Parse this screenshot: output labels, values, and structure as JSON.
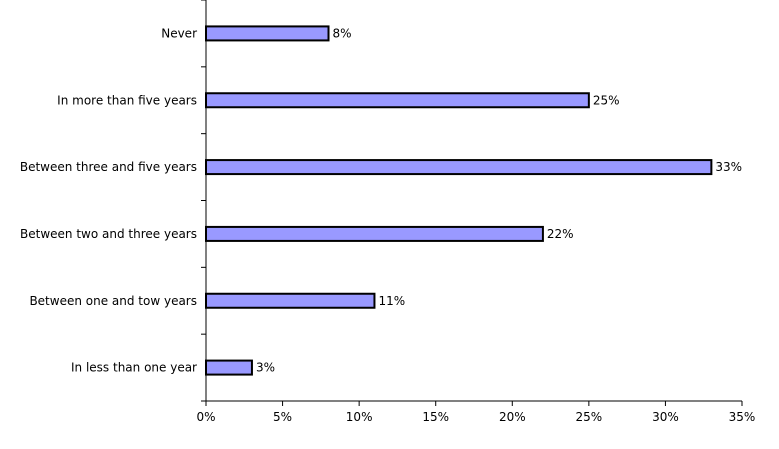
{
  "chart_data": {
    "type": "bar",
    "orientation": "horizontal",
    "categories": [
      "Never",
      "In more than five years",
      "Between three and five years",
      "Between two and three years",
      "Between one and tow years",
      "In less than one year"
    ],
    "values": [
      8,
      25,
      33,
      22,
      11,
      3
    ],
    "value_labels": [
      "8%",
      "25%",
      "33%",
      "22%",
      "11%",
      "3%"
    ],
    "x_ticks": [
      0,
      5,
      10,
      15,
      20,
      25,
      30,
      35
    ],
    "x_tick_labels": [
      "0%",
      "5%",
      "10%",
      "15%",
      "20%",
      "25%",
      "30%",
      "35%"
    ],
    "xlim": [
      0,
      35
    ],
    "title": "",
    "xlabel": "",
    "ylabel": "",
    "grid": false,
    "legend": "none",
    "colors": {
      "bar_fill": "#9999ff",
      "bar_stroke": "#000000",
      "axis": "#000000"
    }
  }
}
